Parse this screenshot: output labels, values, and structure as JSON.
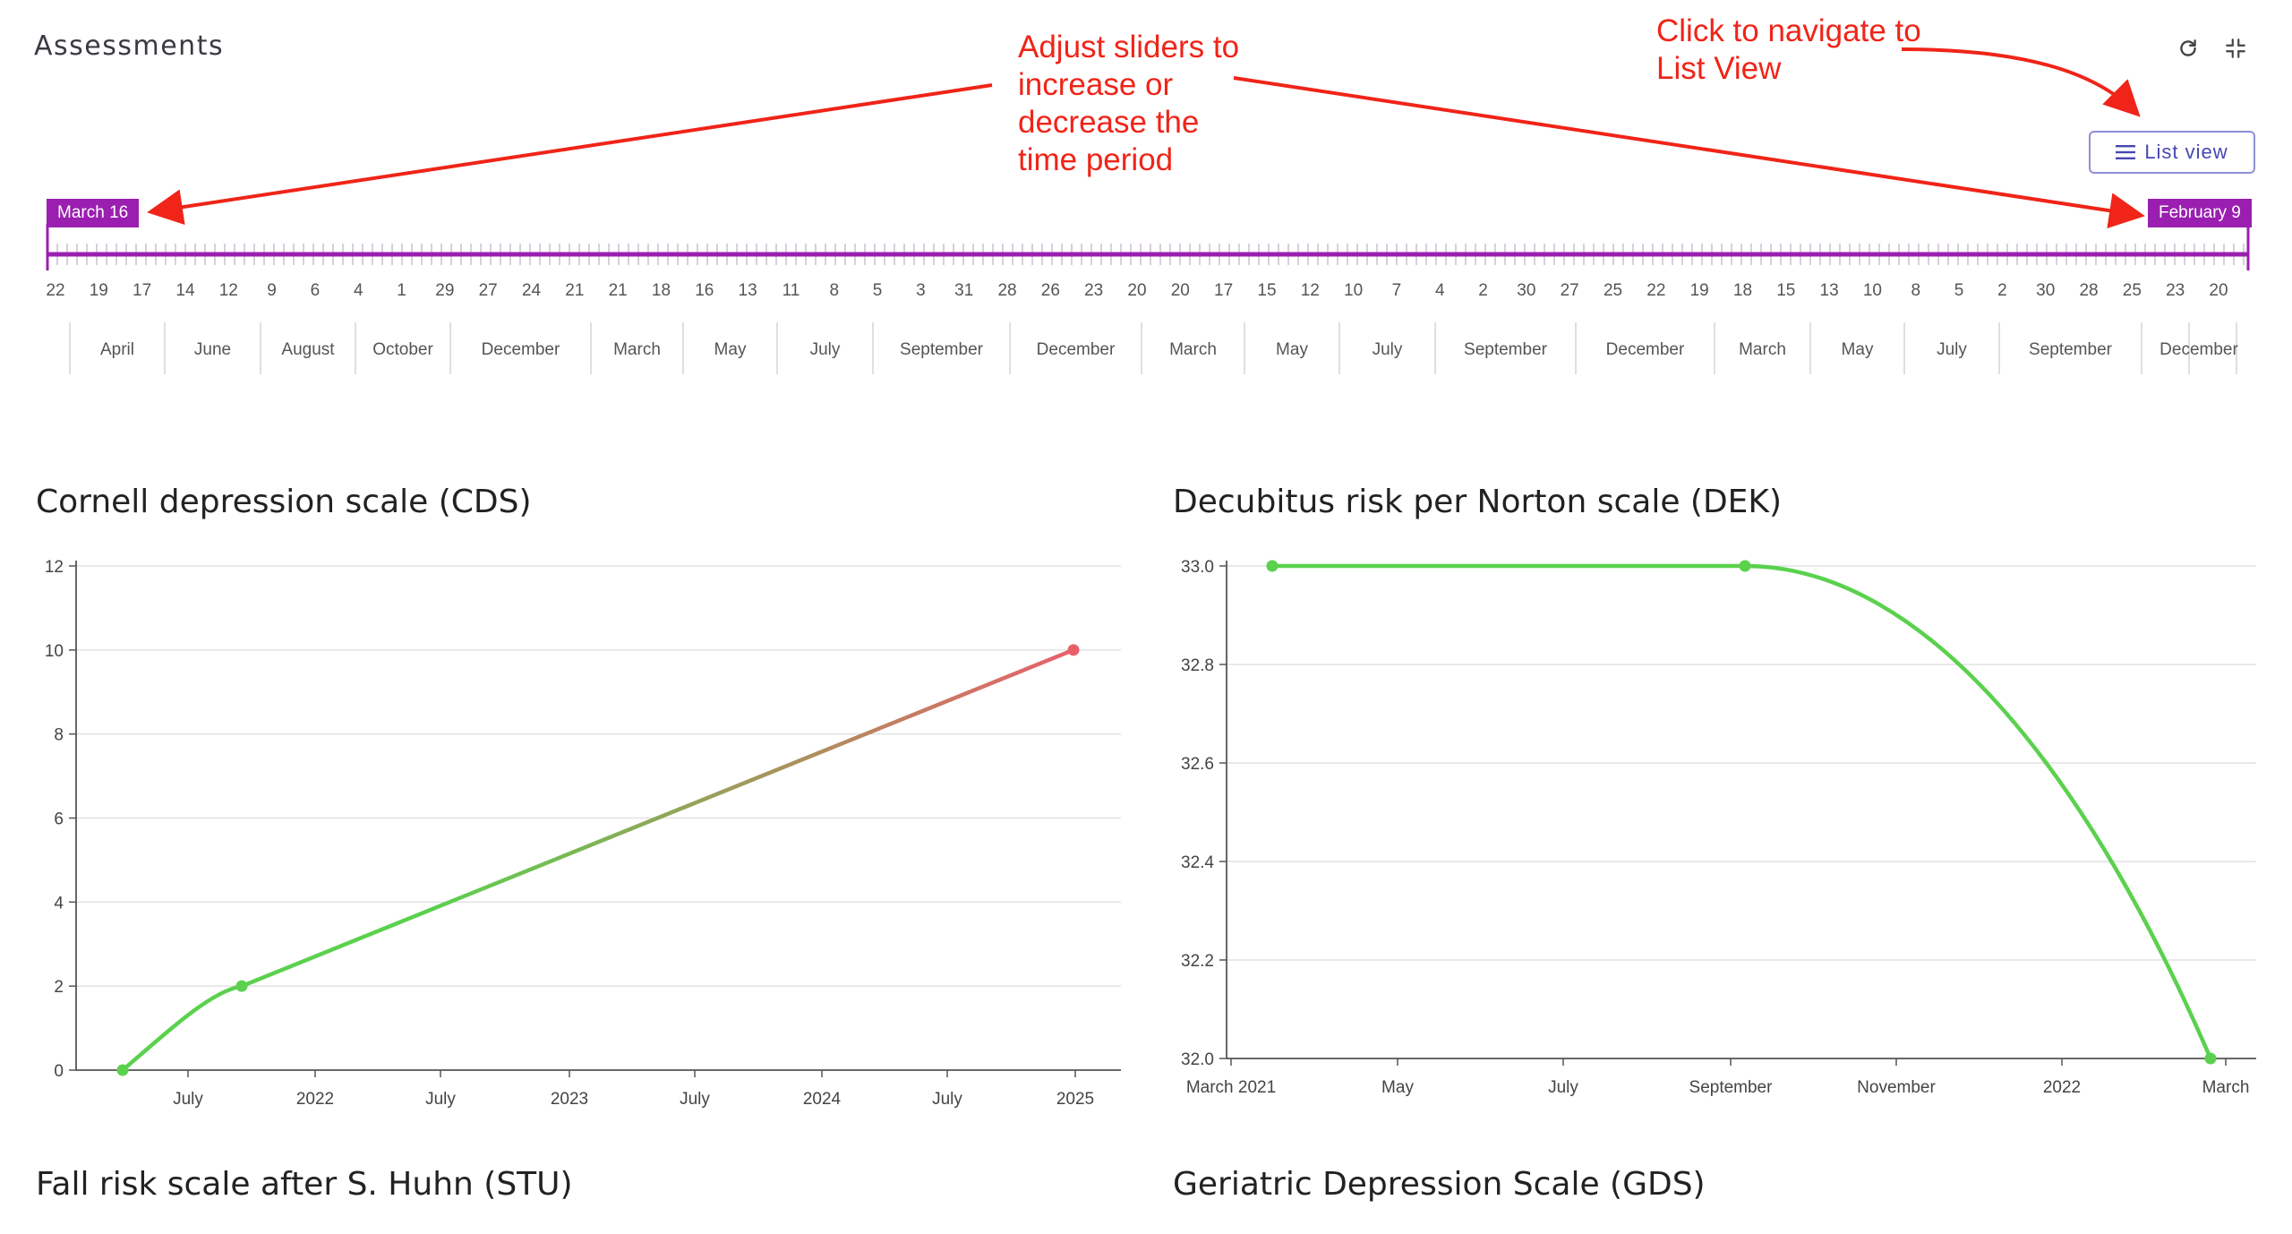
{
  "header": {
    "title": "Assessments"
  },
  "toolbar": {
    "refresh_icon": "refresh-icon",
    "collapse_icon": "collapse-icon",
    "list_view_label": "List view",
    "list_view_icon": "hamburger-icon"
  },
  "annotations": {
    "sliders_note": "Adjust sliders to increase or decrease the time period",
    "list_view_note": "Click to navigate to List View",
    "color": "#f02418"
  },
  "timeline": {
    "start_label": "March 16",
    "end_label": "February 9",
    "accent": "#9a1fb0",
    "day_ticks": [
      "22",
      "19",
      "17",
      "14",
      "12",
      "9",
      "6",
      "4",
      "1",
      "29",
      "27",
      "24",
      "21",
      "21",
      "18",
      "16",
      "13",
      "11",
      "8",
      "5",
      "3",
      "31",
      "28",
      "26",
      "23",
      "20",
      "20",
      "17",
      "15",
      "12",
      "10",
      "7",
      "4",
      "2",
      "30",
      "27",
      "25",
      "22",
      "19",
      "18",
      "15",
      "13",
      "10",
      "8",
      "5",
      "2",
      "30",
      "28",
      "25",
      "23",
      "20"
    ],
    "month_ticks": [
      "April",
      "June",
      "August",
      "October",
      "December",
      "March",
      "May",
      "July",
      "September",
      "December",
      "March",
      "May",
      "July",
      "September",
      "December",
      "March",
      "May",
      "July",
      "September",
      "December"
    ]
  },
  "charts": {
    "cds_title": "Cornell depression scale (CDS)",
    "dek_title": "Decubitus risk per Norton scale (DEK)",
    "stu_title": "Fall risk scale after S. Huhn (STU)",
    "gds_title": "Geriatric Depression Scale (GDS)",
    "good_color": "#5bd14e",
    "bad_color": "#e8606a"
  },
  "chart_data": [
    {
      "type": "line",
      "title": "Cornell depression scale (CDS)",
      "x": [
        "2021-04",
        "2021-10",
        "2025-01"
      ],
      "values": [
        0,
        2,
        10
      ],
      "ylim": [
        0,
        12
      ],
      "yticks": [
        "0",
        "2",
        "4",
        "6",
        "8",
        "10",
        "12"
      ],
      "xtick_labels": [
        "July",
        "2022",
        "July",
        "2023",
        "July",
        "2024",
        "July",
        "2025"
      ],
      "xlabel": "",
      "ylabel": "",
      "grid": true
    },
    {
      "type": "line",
      "title": "Decubitus risk per Norton scale (DEK)",
      "x": [
        "2021-03",
        "2021-09",
        "2022-02"
      ],
      "values": [
        33.0,
        33.0,
        32.0
      ],
      "ylim": [
        32.0,
        33.0
      ],
      "yticks": [
        "32.0",
        "32.2",
        "32.4",
        "32.6",
        "32.8",
        "33.0"
      ],
      "xtick_labels": [
        "March 2021",
        "May",
        "July",
        "September",
        "November",
        "2022",
        "March"
      ],
      "xlabel": "",
      "ylabel": "",
      "grid": true
    }
  ]
}
